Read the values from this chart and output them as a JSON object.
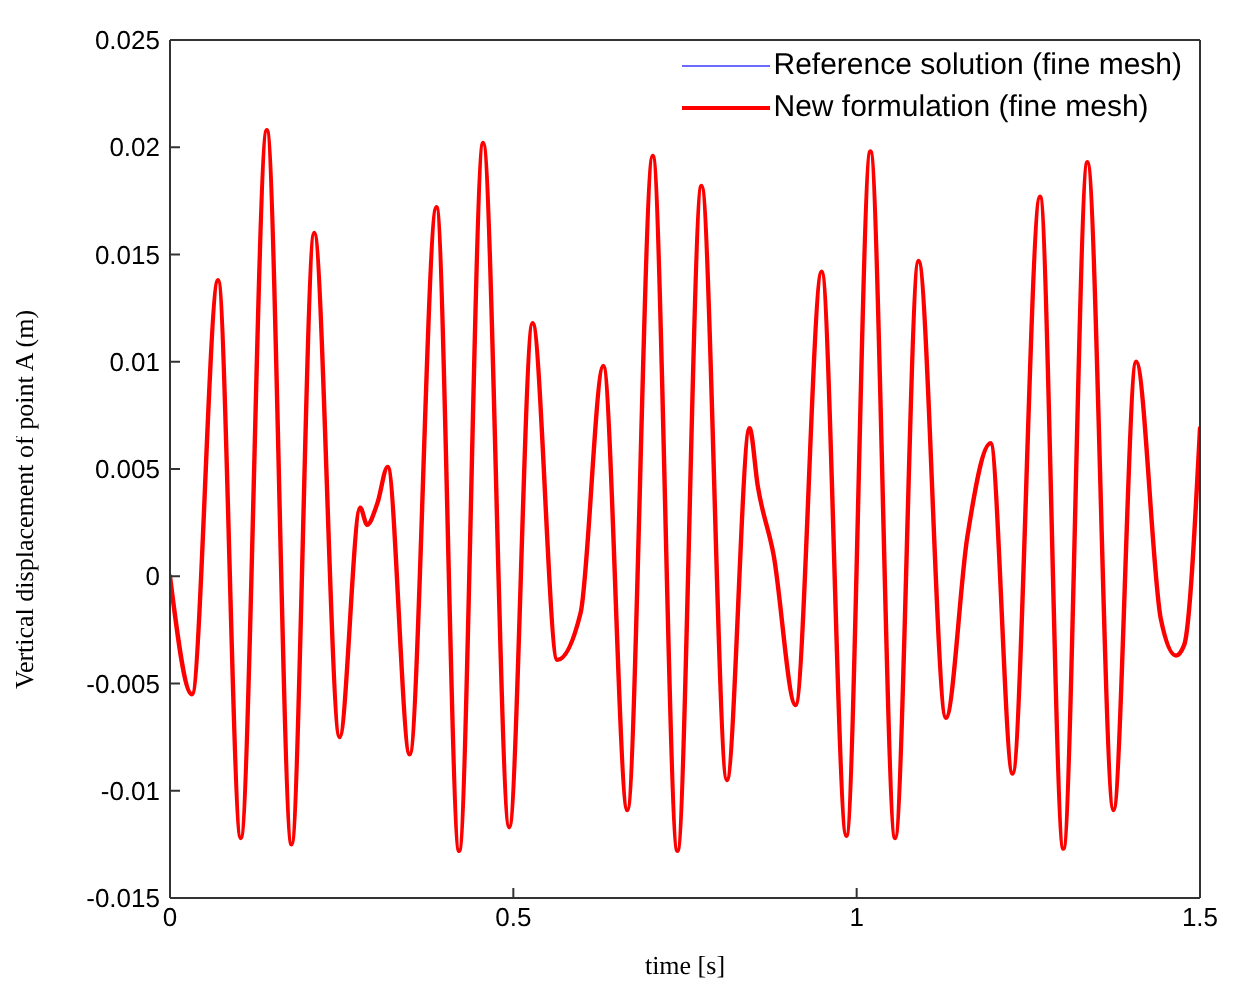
{
  "chart_data": {
    "type": "line",
    "xlabel": "time [s]",
    "ylabel": "Vertical displacement of point A (m)",
    "x": [
      0,
      0.032,
      0.07,
      0.103,
      0.141,
      0.177,
      0.21,
      0.247,
      0.277,
      0.287,
      0.302,
      0.317,
      0.349,
      0.388,
      0.421,
      0.456,
      0.494,
      0.528,
      0.564,
      0.598,
      0.631,
      0.666,
      0.703,
      0.739,
      0.774,
      0.811,
      0.844,
      0.856,
      0.879,
      0.911,
      0.949,
      0.985,
      1.02,
      1.056,
      1.09,
      1.13,
      1.161,
      1.195,
      1.227,
      1.267,
      1.301,
      1.336,
      1.374,
      1.407,
      1.443,
      1.465,
      1.477,
      1.5
    ],
    "series": [
      {
        "name": "Reference solution (fine mesh)",
        "color": "#6b6bff",
        "values": [
          null,
          null,
          null,
          null,
          null,
          null,
          null,
          null,
          null,
          null,
          null,
          null,
          null,
          null,
          null,
          null,
          null,
          null,
          null,
          null,
          null,
          null,
          null,
          null,
          null,
          null,
          null,
          null,
          null,
          null,
          null,
          null,
          null,
          null,
          null,
          null,
          null,
          null,
          null,
          null,
          null,
          null,
          null,
          null,
          null,
          null,
          null,
          null
        ]
      },
      {
        "name": "New formulation (fine mesh)",
        "color": "#ff0000",
        "values": [
          0,
          -0.0055,
          0.0138,
          -0.0122,
          0.0208,
          -0.0125,
          0.016,
          -0.0075,
          0.0032,
          0.0024,
          0.0034,
          0.0051,
          -0.0083,
          0.0172,
          -0.0128,
          0.0202,
          -0.0117,
          0.0118,
          -0.0039,
          -0.0017,
          0.0098,
          -0.0109,
          0.0196,
          -0.0128,
          0.0182,
          -0.0095,
          0.0069,
          0.0042,
          0.001,
          -0.006,
          0.0142,
          -0.0121,
          0.0198,
          -0.0122,
          0.0147,
          -0.0066,
          0.0018,
          0.0062,
          -0.0092,
          0.0177,
          -0.0127,
          0.0193,
          -0.0109,
          0.01,
          -0.002,
          -0.0037,
          -0.0032,
          0.0069
        ]
      }
    ],
    "xlim": [
      0,
      1.5
    ],
    "xticks": [
      0,
      0.5,
      1,
      1.5
    ],
    "ylim": [
      -0.015,
      0.025
    ],
    "yticks": [
      -0.015,
      -0.01,
      -0.005,
      0,
      0.005,
      0.01,
      0.015,
      0.02,
      0.025
    ],
    "grid": false,
    "legend": "top right",
    "marker": "none",
    "line_style": "solid"
  }
}
